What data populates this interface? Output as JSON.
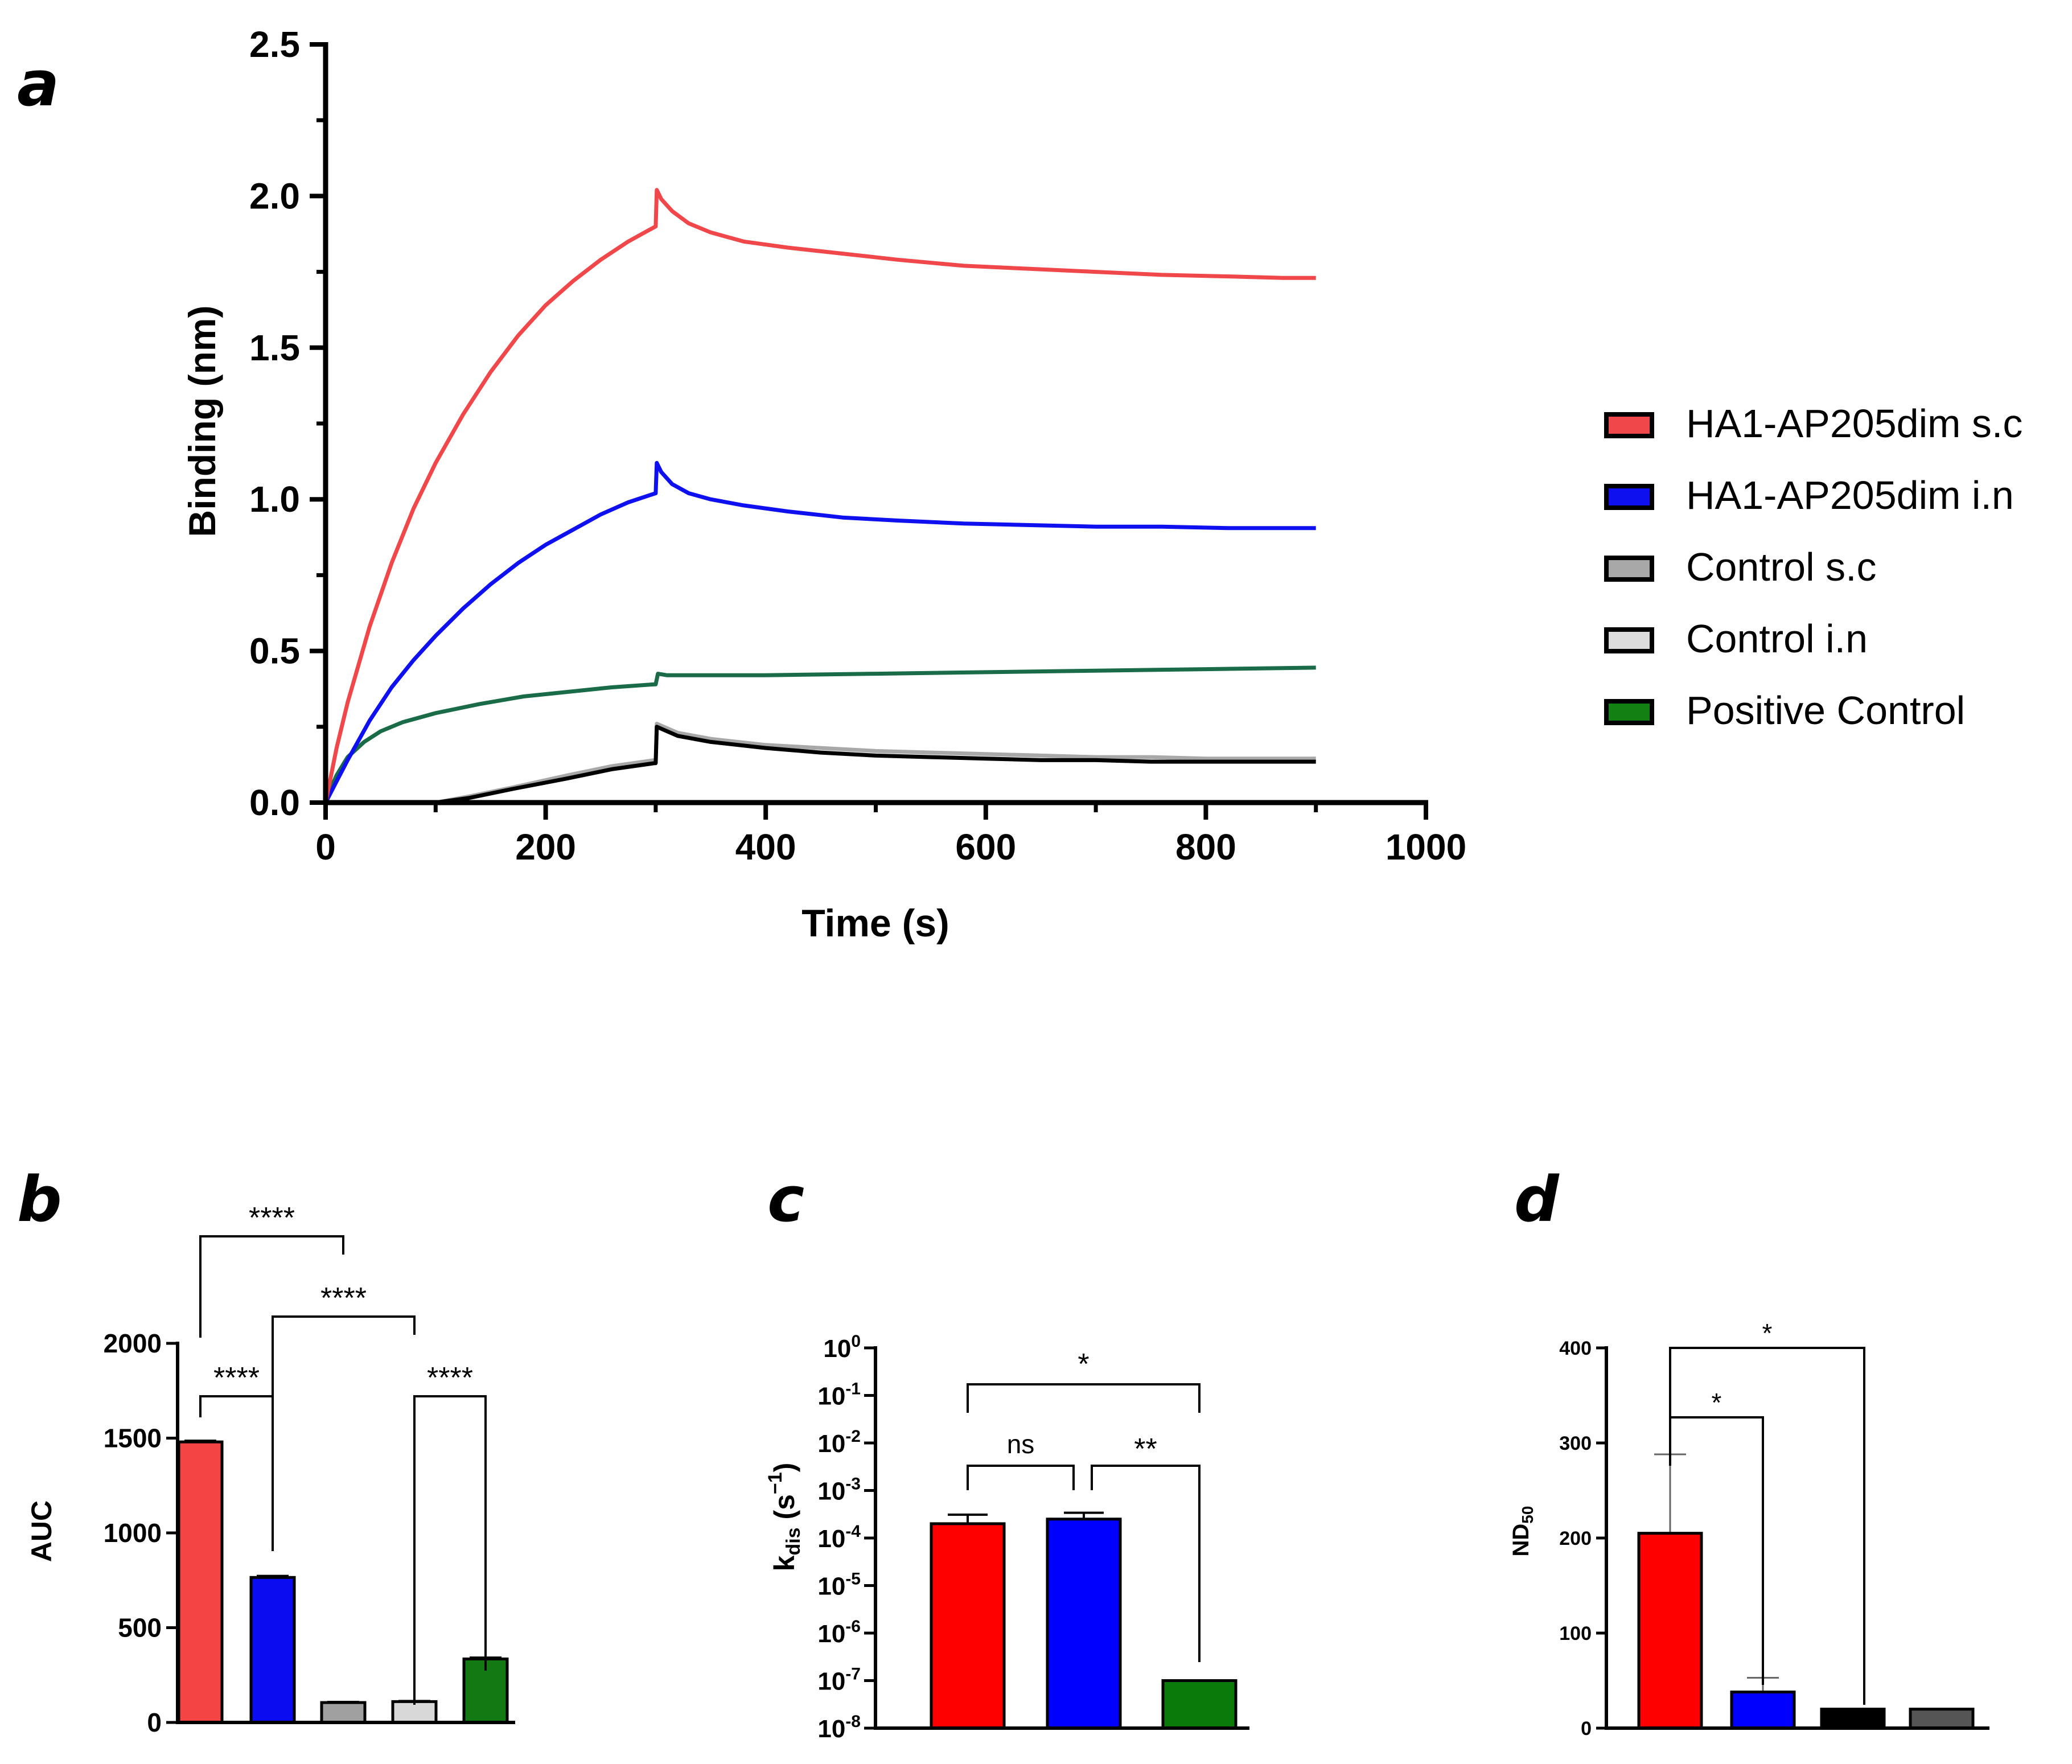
{
  "figure": {
    "panel_labels": [
      "a",
      "b",
      "c",
      "d"
    ]
  },
  "chart_data": [
    {
      "panel": "a",
      "type": "line",
      "title": "",
      "xlabel": "Time (s)",
      "ylabel": "Binding (nm)",
      "xlim": [
        0,
        1000
      ],
      "ylim": [
        0,
        2.5
      ],
      "xticks": [
        "0",
        "200",
        "400",
        "600",
        "800",
        "1000"
      ],
      "yticks": [
        "0.0",
        "0.5",
        "1.0",
        "1.5",
        "2.0",
        "2.5"
      ],
      "legend": "right",
      "series": [
        {
          "name": "HA1-AP205dim s.c",
          "color": "#f0474a",
          "x": [
            0,
            10,
            20,
            40,
            60,
            80,
            100,
            125,
            150,
            175,
            200,
            225,
            250,
            275,
            300,
            301,
            305,
            315,
            330,
            350,
            380,
            420,
            470,
            520,
            580,
            640,
            700,
            760,
            820,
            870,
            900
          ],
          "y": [
            0,
            0.18,
            0.33,
            0.58,
            0.79,
            0.97,
            1.12,
            1.28,
            1.42,
            1.54,
            1.64,
            1.72,
            1.79,
            1.85,
            1.9,
            2.02,
            1.99,
            1.95,
            1.91,
            1.88,
            1.85,
            1.83,
            1.81,
            1.79,
            1.77,
            1.76,
            1.75,
            1.74,
            1.735,
            1.73,
            1.73
          ]
        },
        {
          "name": "HA1-AP205dim i.n",
          "color": "#0f10f0",
          "x": [
            0,
            10,
            20,
            40,
            60,
            80,
            100,
            125,
            150,
            175,
            200,
            225,
            250,
            275,
            300,
            301,
            305,
            315,
            330,
            350,
            380,
            420,
            470,
            520,
            580,
            640,
            700,
            760,
            820,
            870,
            900
          ],
          "y": [
            0,
            0.07,
            0.14,
            0.27,
            0.38,
            0.47,
            0.55,
            0.64,
            0.72,
            0.79,
            0.85,
            0.9,
            0.95,
            0.99,
            1.02,
            1.12,
            1.09,
            1.05,
            1.02,
            1.0,
            0.98,
            0.96,
            0.94,
            0.93,
            0.92,
            0.915,
            0.91,
            0.91,
            0.905,
            0.905,
            0.905
          ]
        },
        {
          "name": "Control s.c",
          "color": "#a8a8a8",
          "x": [
            0,
            50,
            90,
            100,
            130,
            170,
            220,
            260,
            299,
            300,
            301,
            320,
            350,
            400,
            450,
            500,
            550,
            600,
            650,
            700,
            750,
            800,
            850,
            900
          ],
          "y": [
            0,
            0,
            0,
            0,
            0.02,
            0.05,
            0.09,
            0.12,
            0.14,
            0.14,
            0.26,
            0.23,
            0.21,
            0.19,
            0.18,
            0.17,
            0.165,
            0.16,
            0.155,
            0.15,
            0.15,
            0.145,
            0.145,
            0.145
          ]
        },
        {
          "name": "Control i.n",
          "color": "#000000",
          "x": [
            0,
            50,
            90,
            100,
            130,
            170,
            220,
            260,
            299,
            300,
            301,
            320,
            350,
            400,
            450,
            500,
            550,
            600,
            650,
            700,
            750,
            800,
            850,
            900
          ],
          "y": [
            0,
            0,
            0,
            0,
            0.015,
            0.045,
            0.08,
            0.11,
            0.13,
            0.13,
            0.25,
            0.22,
            0.2,
            0.18,
            0.165,
            0.155,
            0.15,
            0.145,
            0.14,
            0.14,
            0.135,
            0.135,
            0.135,
            0.135
          ]
        },
        {
          "name": "Positive Control",
          "color": "#1a6b48",
          "x": [
            0,
            5,
            10,
            20,
            35,
            50,
            70,
            100,
            140,
            180,
            220,
            260,
            299,
            300,
            302,
            310,
            350,
            400,
            500,
            600,
            700,
            800,
            900
          ],
          "y": [
            0,
            0.05,
            0.09,
            0.15,
            0.2,
            0.235,
            0.265,
            0.295,
            0.325,
            0.35,
            0.365,
            0.38,
            0.39,
            0.39,
            0.425,
            0.42,
            0.42,
            0.42,
            0.425,
            0.43,
            0.435,
            0.44,
            0.445
          ]
        }
      ],
      "legend_entries": [
        {
          "label": "HA1-AP205dim s.c",
          "color": "#f0474a"
        },
        {
          "label": "HA1-AP205dim i.n",
          "color": "#0f10f0"
        },
        {
          "label": "Control s.c",
          "color": "#a8a8a8"
        },
        {
          "label": "Control i.n",
          "color": "#dcdcdc"
        },
        {
          "label": "Positive Control",
          "color": "#138013"
        }
      ]
    },
    {
      "panel": "b",
      "type": "bar",
      "ylabel": "AUC",
      "ylim": [
        0,
        2000
      ],
      "yticks": [
        "0",
        "500",
        "1000",
        "1500",
        "2000"
      ],
      "categories": [
        "HA1-AP205dim s.c",
        "HA1-AP205dim i.n",
        "Control s.c",
        "Control i.n",
        "Positive Control"
      ],
      "values": [
        1480,
        765,
        105,
        110,
        335
      ],
      "errors": [
        6,
        8,
        3,
        3,
        7
      ],
      "colors": [
        "#f44444",
        "#0c0cf0",
        "#a0a0a0",
        "#d8d8d8",
        "#137a13"
      ],
      "significance": [
        {
          "from": 0,
          "to": 2,
          "label": "****"
        },
        {
          "from": 1,
          "to": 3,
          "label": "****"
        },
        {
          "from": 0,
          "to": 1,
          "label": "****"
        },
        {
          "from": 3,
          "to": 4,
          "label": "****"
        }
      ]
    },
    {
      "panel": "c",
      "type": "bar",
      "ylabel": "k_dis (s^-1)",
      "ylabel_main": "k",
      "ylabel_sub": "dis",
      "ylabel_unit_open": " (s",
      "ylabel_unit_sup": "−1",
      "ylabel_unit_close": ")",
      "yscale": "log",
      "ylim": [
        1e-08,
        1
      ],
      "ytick_exponents": [
        "0",
        "-1",
        "-2",
        "-3",
        "-4",
        "-5",
        "-6",
        "-7",
        "-8"
      ],
      "ytick_base": "10",
      "categories": [
        "HA1-AP205dim s.c",
        "HA1-AP205dim i.n",
        "Positive Control"
      ],
      "values": [
        0.0002,
        0.00025,
        1e-07
      ],
      "errors_upper": [
        0.00031,
        0.00034,
        1e-07
      ],
      "colors": [
        "#ff0000",
        "#0000ff",
        "#0a7a0a"
      ],
      "significance": [
        {
          "from": 0,
          "to": 2,
          "label": "*"
        },
        {
          "from": 0,
          "to": 1,
          "label": "ns"
        },
        {
          "from": 1,
          "to": 2,
          "label": "**"
        }
      ]
    },
    {
      "panel": "d",
      "type": "bar",
      "ylabel": "ND50",
      "ylabel_main": "ND",
      "ylabel_sub": "50",
      "ylim": [
        0,
        400
      ],
      "yticks": [
        "0",
        "100",
        "200",
        "300",
        "400"
      ],
      "categories": [
        "HA1-AP205dim s.c",
        "HA1-AP205dim i.n",
        "Control s.c",
        "Control i.n"
      ],
      "values": [
        205,
        38,
        20,
        20
      ],
      "errors_upper": [
        288,
        53,
        20,
        20
      ],
      "colors": [
        "#ff0000",
        "#0000ff",
        "#000000",
        "#555555"
      ],
      "significance": [
        {
          "from": 0,
          "to": 2,
          "label": "*"
        },
        {
          "from": 0,
          "to": 1,
          "label": "*"
        }
      ]
    }
  ]
}
